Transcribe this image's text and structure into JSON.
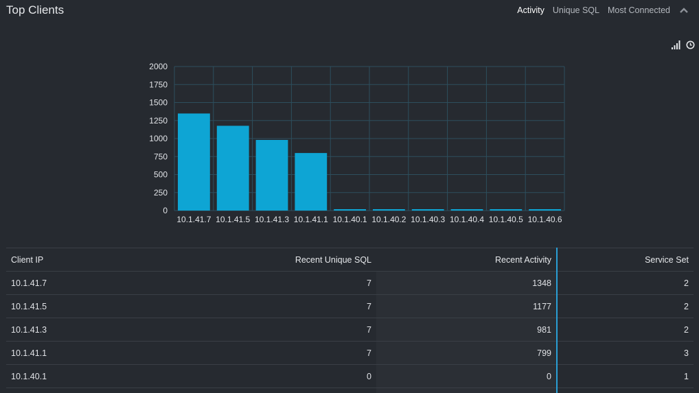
{
  "panel": {
    "title": "Top Clients",
    "tabs": [
      {
        "label": "Activity",
        "active": true
      },
      {
        "label": "Unique SQL",
        "active": false
      },
      {
        "label": "Most Connected",
        "active": false
      }
    ],
    "icons": [
      "chevron-up-icon",
      "signal-bars-icon",
      "clock-icon"
    ]
  },
  "chart_data": {
    "type": "bar",
    "categories": [
      "10.1.41.7",
      "10.1.41.5",
      "10.1.41.3",
      "10.1.41.1",
      "10.1.40.1",
      "10.1.40.2",
      "10.1.40.3",
      "10.1.40.4",
      "10.1.40.5",
      "10.1.40.6"
    ],
    "values": [
      1348,
      1177,
      981,
      799,
      0,
      0,
      0,
      0,
      0,
      0
    ],
    "yticks": [
      0,
      250,
      500,
      750,
      1000,
      1250,
      1500,
      1750,
      2000
    ],
    "ylim": [
      0,
      2000
    ],
    "grid": true,
    "bar_color": "#0ea5d4"
  },
  "table": {
    "columns": [
      "Client IP",
      "Recent Unique SQL",
      "Recent Activity",
      "Service Set"
    ],
    "rows": [
      [
        "10.1.41.7",
        "7",
        "1348",
        "2"
      ],
      [
        "10.1.41.5",
        "7",
        "1177",
        "2"
      ],
      [
        "10.1.41.3",
        "7",
        "981",
        "2"
      ],
      [
        "10.1.41.1",
        "7",
        "799",
        "3"
      ],
      [
        "10.1.40.1",
        "0",
        "0",
        "1"
      ],
      [
        "",
        "",
        "",
        ""
      ]
    ]
  }
}
